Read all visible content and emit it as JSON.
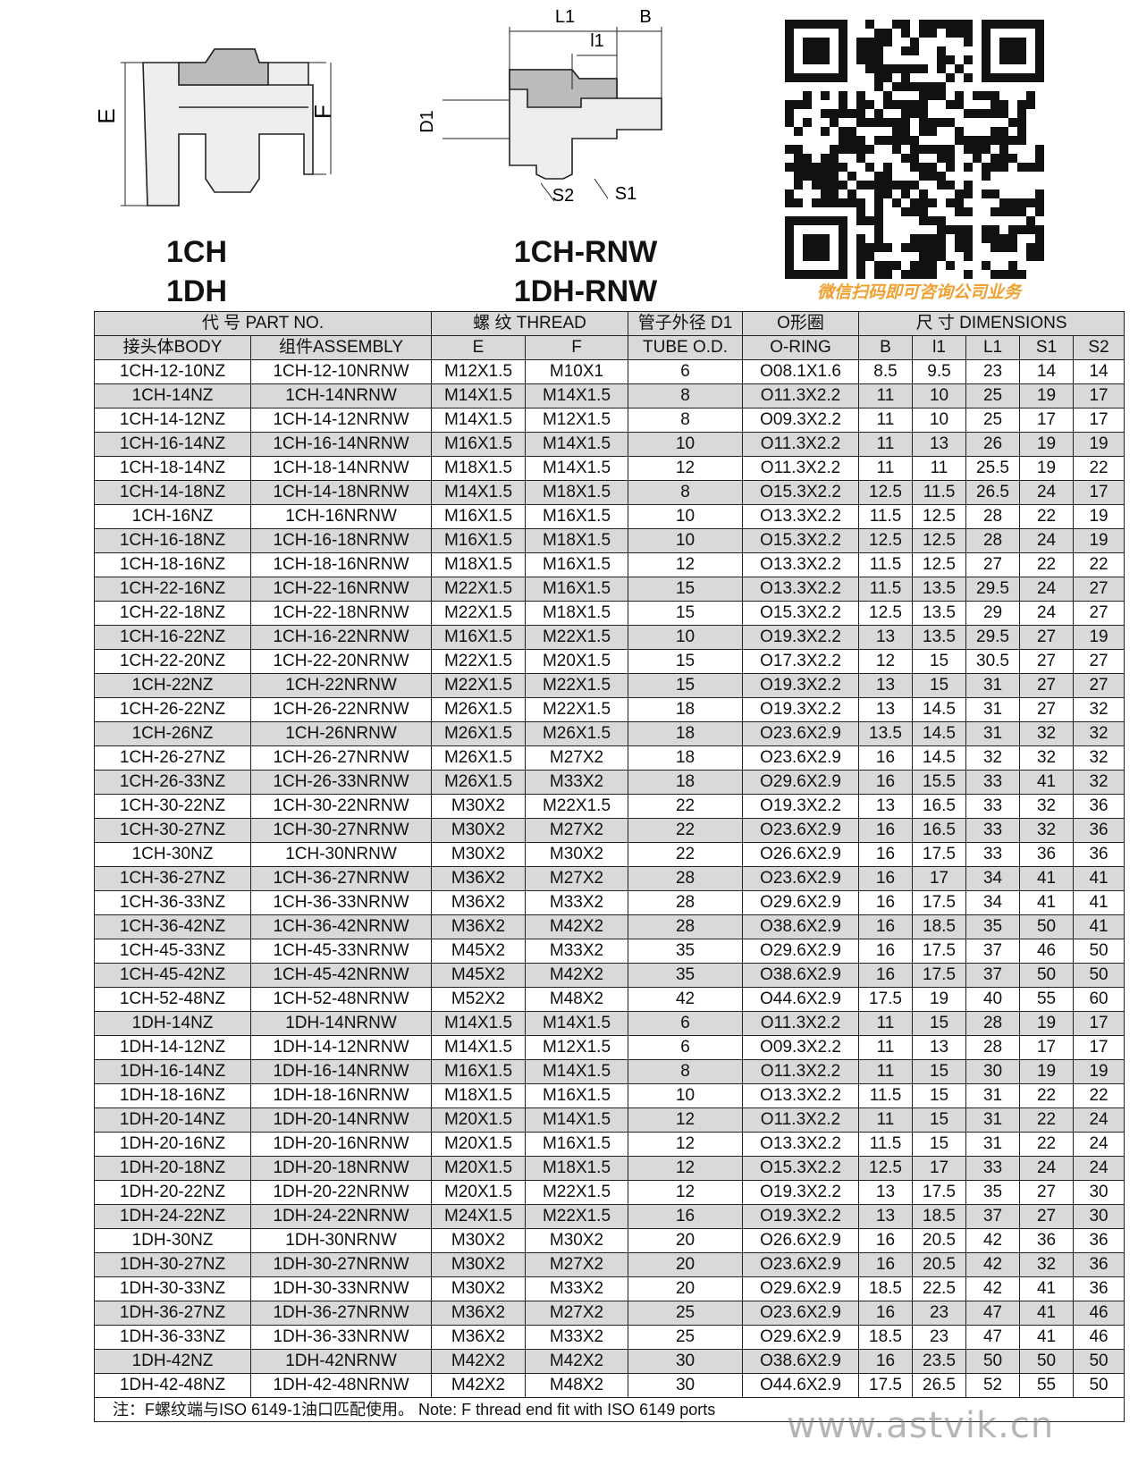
{
  "drawing_left": {
    "title_lines": [
      "1CH",
      "1DH"
    ],
    "labels": [
      "E",
      "F"
    ]
  },
  "drawing_right": {
    "title_lines": [
      "1CH-RNW",
      "1DH-RNW"
    ],
    "labels": [
      "L1",
      "B",
      "l1",
      "D1",
      "S2",
      "S1"
    ]
  },
  "qr_caption": "微信扫码即可咨询公司业务",
  "table": {
    "header_rows": [
      [
        "代 号 PART NO.",
        "螺 纹 THREAD",
        "管子外径 D1",
        "O形圈",
        "尺 寸 DIMENSIONS"
      ],
      [
        "接头体BODY",
        "组件ASSEMBLY",
        "E",
        "F",
        "TUBE O.D.",
        "O-RING",
        "B",
        "l1",
        "L1",
        "S1",
        "S2"
      ]
    ],
    "rows": [
      [
        "1CH-12-10NZ",
        "1CH-12-10NRNW",
        "M12X1.5",
        "M10X1",
        6,
        "O08.1X1.6",
        8.5,
        9.5,
        23,
        14,
        14
      ],
      [
        "1CH-14NZ",
        "1CH-14NRNW",
        "M14X1.5",
        "M14X1.5",
        8,
        "O11.3X2.2",
        11,
        10,
        25,
        19,
        17
      ],
      [
        "1CH-14-12NZ",
        "1CH-14-12NRNW",
        "M14X1.5",
        "M12X1.5",
        8,
        "O09.3X2.2",
        11,
        10,
        25,
        17,
        17
      ],
      [
        "1CH-16-14NZ",
        "1CH-16-14NRNW",
        "M16X1.5",
        "M14X1.5",
        10,
        "O11.3X2.2",
        11,
        13,
        26,
        19,
        19
      ],
      [
        "1CH-18-14NZ",
        "1CH-18-14NRNW",
        "M18X1.5",
        "M14X1.5",
        12,
        "O11.3X2.2",
        11,
        11,
        25.5,
        19,
        22
      ],
      [
        "1CH-14-18NZ",
        "1CH-14-18NRNW",
        "M14X1.5",
        "M18X1.5",
        8,
        "O15.3X2.2",
        12.5,
        11.5,
        26.5,
        24,
        17
      ],
      [
        "1CH-16NZ",
        "1CH-16NRNW",
        "M16X1.5",
        "M16X1.5",
        10,
        "O13.3X2.2",
        11.5,
        12.5,
        28,
        22,
        19
      ],
      [
        "1CH-16-18NZ",
        "1CH-16-18NRNW",
        "M16X1.5",
        "M18X1.5",
        10,
        "O15.3X2.2",
        12.5,
        12.5,
        28,
        24,
        19
      ],
      [
        "1CH-18-16NZ",
        "1CH-18-16NRNW",
        "M18X1.5",
        "M16X1.5",
        12,
        "O13.3X2.2",
        11.5,
        12.5,
        27,
        22,
        22
      ],
      [
        "1CH-22-16NZ",
        "1CH-22-16NRNW",
        "M22X1.5",
        "M16X1.5",
        15,
        "O13.3X2.2",
        11.5,
        13.5,
        29.5,
        24,
        27
      ],
      [
        "1CH-22-18NZ",
        "1CH-22-18NRNW",
        "M22X1.5",
        "M18X1.5",
        15,
        "O15.3X2.2",
        12.5,
        13.5,
        29,
        24,
        27
      ],
      [
        "1CH-16-22NZ",
        "1CH-16-22NRNW",
        "M16X1.5",
        "M22X1.5",
        10,
        "O19.3X2.2",
        13,
        13.5,
        29.5,
        27,
        19
      ],
      [
        "1CH-22-20NZ",
        "1CH-22-20NRNW",
        "M22X1.5",
        "M20X1.5",
        15,
        "O17.3X2.2",
        12,
        15,
        30.5,
        27,
        27
      ],
      [
        "1CH-22NZ",
        "1CH-22NRNW",
        "M22X1.5",
        "M22X1.5",
        15,
        "O19.3X2.2",
        13,
        15,
        31,
        27,
        27
      ],
      [
        "1CH-26-22NZ",
        "1CH-26-22NRNW",
        "M26X1.5",
        "M22X1.5",
        18,
        "O19.3X2.2",
        13,
        14.5,
        31,
        27,
        32
      ],
      [
        "1CH-26NZ",
        "1CH-26NRNW",
        "M26X1.5",
        "M26X1.5",
        18,
        "O23.6X2.9",
        13.5,
        14.5,
        31,
        32,
        32
      ],
      [
        "1CH-26-27NZ",
        "1CH-26-27NRNW",
        "M26X1.5",
        "M27X2",
        18,
        "O23.6X2.9",
        16,
        14.5,
        32,
        32,
        32
      ],
      [
        "1CH-26-33NZ",
        "1CH-26-33NRNW",
        "M26X1.5",
        "M33X2",
        18,
        "O29.6X2.9",
        16,
        15.5,
        33,
        41,
        32
      ],
      [
        "1CH-30-22NZ",
        "1CH-30-22NRNW",
        "M30X2",
        "M22X1.5",
        22,
        "O19.3X2.2",
        13,
        16.5,
        33,
        32,
        36
      ],
      [
        "1CH-30-27NZ",
        "1CH-30-27NRNW",
        "M30X2",
        "M27X2",
        22,
        "O23.6X2.9",
        16,
        16.5,
        33,
        32,
        36
      ],
      [
        "1CH-30NZ",
        "1CH-30NRNW",
        "M30X2",
        "M30X2",
        22,
        "O26.6X2.9",
        16,
        17.5,
        33,
        36,
        36
      ],
      [
        "1CH-36-27NZ",
        "1CH-36-27NRNW",
        "M36X2",
        "M27X2",
        28,
        "O23.6X2.9",
        16,
        17,
        34,
        41,
        41
      ],
      [
        "1CH-36-33NZ",
        "1CH-36-33NRNW",
        "M36X2",
        "M33X2",
        28,
        "O29.6X2.9",
        16,
        17.5,
        34,
        41,
        41
      ],
      [
        "1CH-36-42NZ",
        "1CH-36-42NRNW",
        "M36X2",
        "M42X2",
        28,
        "O38.6X2.9",
        16,
        18.5,
        35,
        50,
        41
      ],
      [
        "1CH-45-33NZ",
        "1CH-45-33NRNW",
        "M45X2",
        "M33X2",
        35,
        "O29.6X2.9",
        16,
        17.5,
        37,
        46,
        50
      ],
      [
        "1CH-45-42NZ",
        "1CH-45-42NRNW",
        "M45X2",
        "M42X2",
        35,
        "O38.6X2.9",
        16,
        17.5,
        37,
        50,
        50
      ],
      [
        "1CH-52-48NZ",
        "1CH-52-48NRNW",
        "M52X2",
        "M48X2",
        42,
        "O44.6X2.9",
        17.5,
        19,
        40,
        55,
        60
      ],
      [
        "1DH-14NZ",
        "1DH-14NRNW",
        "M14X1.5",
        "M14X1.5",
        6,
        "O11.3X2.2",
        11,
        15,
        28,
        19,
        17
      ],
      [
        "1DH-14-12NZ",
        "1DH-14-12NRNW",
        "M14X1.5",
        "M12X1.5",
        6,
        "O09.3X2.2",
        11,
        13,
        28,
        17,
        17
      ],
      [
        "1DH-16-14NZ",
        "1DH-16-14NRNW",
        "M16X1.5",
        "M14X1.5",
        8,
        "O11.3X2.2",
        11,
        15,
        30,
        19,
        19
      ],
      [
        "1DH-18-16NZ",
        "1DH-18-16NRNW",
        "M18X1.5",
        "M16X1.5",
        10,
        "O13.3X2.2",
        11.5,
        15,
        31,
        22,
        22
      ],
      [
        "1DH-20-14NZ",
        "1DH-20-14NRNW",
        "M20X1.5",
        "M14X1.5",
        12,
        "O11.3X2.2",
        11,
        15,
        31,
        22,
        24
      ],
      [
        "1DH-20-16NZ",
        "1DH-20-16NRNW",
        "M20X1.5",
        "M16X1.5",
        12,
        "O13.3X2.2",
        11.5,
        15,
        31,
        22,
        24
      ],
      [
        "1DH-20-18NZ",
        "1DH-20-18NRNW",
        "M20X1.5",
        "M18X1.5",
        12,
        "O15.3X2.2",
        12.5,
        17,
        33,
        24,
        24
      ],
      [
        "1DH-20-22NZ",
        "1DH-20-22NRNW",
        "M20X1.5",
        "M22X1.5",
        12,
        "O19.3X2.2",
        13,
        17.5,
        35,
        27,
        30
      ],
      [
        "1DH-24-22NZ",
        "1DH-24-22NRNW",
        "M24X1.5",
        "M22X1.5",
        16,
        "O19.3X2.2",
        13,
        18.5,
        37,
        27,
        30
      ],
      [
        "1DH-30NZ",
        "1DH-30NRNW",
        "M30X2",
        "M30X2",
        20,
        "O26.6X2.9",
        16,
        20.5,
        42,
        36,
        36
      ],
      [
        "1DH-30-27NZ",
        "1DH-30-27NRNW",
        "M30X2",
        "M27X2",
        20,
        "O23.6X2.9",
        16,
        20.5,
        42,
        32,
        36
      ],
      [
        "1DH-30-33NZ",
        "1DH-30-33NRNW",
        "M30X2",
        "M33X2",
        20,
        "O29.6X2.9",
        18.5,
        22.5,
        42,
        41,
        36
      ],
      [
        "1DH-36-27NZ",
        "1DH-36-27NRNW",
        "M36X2",
        "M27X2",
        25,
        "O23.6X2.9",
        16,
        23,
        47,
        41,
        46
      ],
      [
        "1DH-36-33NZ",
        "1DH-36-33NRNW",
        "M36X2",
        "M33X2",
        25,
        "O29.6X2.9",
        18.5,
        23,
        47,
        41,
        46
      ],
      [
        "1DH-42NZ",
        "1DH-42NRNW",
        "M42X2",
        "M42X2",
        30,
        "O38.6X2.9",
        16,
        23.5,
        50,
        50,
        50
      ],
      [
        "1DH-42-48NZ",
        "1DH-42-48NRNW",
        "M42X2",
        "M48X2",
        30,
        "O44.6X2.9",
        17.5,
        26.5,
        52,
        55,
        50
      ]
    ],
    "note": "注：F螺纹端与ISO 6149-1油口匹配使用。 Note: F thread end fit with ISO 6149 ports"
  },
  "watermark": "www.astvik.cn"
}
